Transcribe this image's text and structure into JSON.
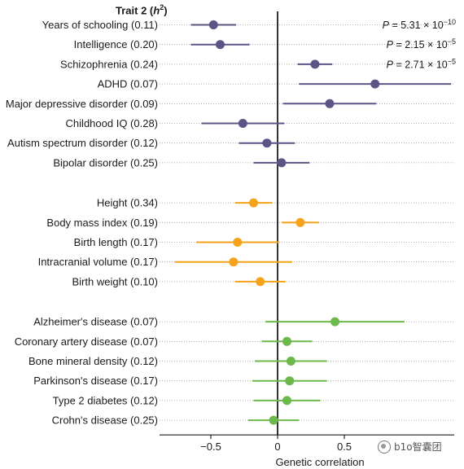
{
  "header": {
    "title": "Trait 2 (",
    "title_h": "h",
    "title_sup": "2",
    "title_close": ")"
  },
  "watermark": {
    "text": "b1o智囊团"
  },
  "colors": {
    "group1": "#5b5485",
    "group2": "#f5a31a",
    "group3": "#6cb84a",
    "axis": "#000000",
    "dots": "#999999"
  },
  "chart_data": {
    "type": "forest",
    "xlabel": "Genetic correlation",
    "xlim": [
      -0.72,
      0.95
    ],
    "xticks": [
      -0.5,
      0,
      0.5
    ],
    "xtick_labels": [
      "−0.5",
      "0",
      "0.5"
    ],
    "annotations": [
      {
        "row": 0,
        "prefix": "P",
        "text": " = 5.31 × 10",
        "exp": "−10"
      },
      {
        "row": 1,
        "prefix": "P",
        "text": " = 2.15 × 10",
        "exp": "−5"
      },
      {
        "row": 2,
        "prefix": "P",
        "text": " = 2.71 × 10",
        "exp": "−5"
      }
    ],
    "groups": [
      {
        "color": "group1",
        "rows": [
          {
            "label": "Years of schooling (0.11)",
            "est": -0.48,
            "lo": -0.65,
            "hi": -0.31
          },
          {
            "label": "Intelligence (0.20)",
            "est": -0.43,
            "lo": -0.65,
            "hi": -0.21
          },
          {
            "label": "Schizophrenia (0.24)",
            "est": 0.28,
            "lo": 0.15,
            "hi": 0.41
          },
          {
            "label": "ADHD (0.07)",
            "est": 0.73,
            "lo": 0.16,
            "hi": 1.3
          },
          {
            "label": "Major depressive disorder (0.09)",
            "est": 0.39,
            "lo": 0.04,
            "hi": 0.74
          },
          {
            "label": "Childhood IQ (0.28)",
            "est": -0.26,
            "lo": -0.57,
            "hi": 0.05
          },
          {
            "label": "Autism spectrum disorder (0.12)",
            "est": -0.08,
            "lo": -0.29,
            "hi": 0.13
          },
          {
            "label": "Bipolar disorder (0.25)",
            "est": 0.03,
            "lo": -0.18,
            "hi": 0.24
          }
        ]
      },
      {
        "color": "group2",
        "rows": [
          {
            "label": "Height (0.34)",
            "est": -0.18,
            "lo": -0.32,
            "hi": -0.04
          },
          {
            "label": "Body mass index (0.19)",
            "est": 0.17,
            "lo": 0.03,
            "hi": 0.31
          },
          {
            "label": "Birth length (0.17)",
            "est": -0.3,
            "lo": -0.61,
            "hi": 0.01
          },
          {
            "label": "Intracranial volume (0.17)",
            "est": -0.33,
            "lo": -0.77,
            "hi": 0.11
          },
          {
            "label": "Birth weight (0.10)",
            "est": -0.13,
            "lo": -0.32,
            "hi": 0.06
          }
        ]
      },
      {
        "color": "group3",
        "rows": [
          {
            "label": "Alzheimer's disease (0.07)",
            "est": 0.43,
            "lo": -0.09,
            "hi": 0.95
          },
          {
            "label": "Coronary artery disease (0.07)",
            "est": 0.07,
            "lo": -0.12,
            "hi": 0.26
          },
          {
            "label": "Bone mineral density (0.12)",
            "est": 0.1,
            "lo": -0.17,
            "hi": 0.37
          },
          {
            "label": "Parkinson's disease (0.17)",
            "est": 0.09,
            "lo": -0.19,
            "hi": 0.37
          },
          {
            "label": "Type 2 diabetes (0.12)",
            "est": 0.07,
            "lo": -0.18,
            "hi": 0.32
          },
          {
            "label": "Crohn's disease (0.25)",
            "est": -0.03,
            "lo": -0.22,
            "hi": 0.16
          }
        ]
      }
    ]
  }
}
